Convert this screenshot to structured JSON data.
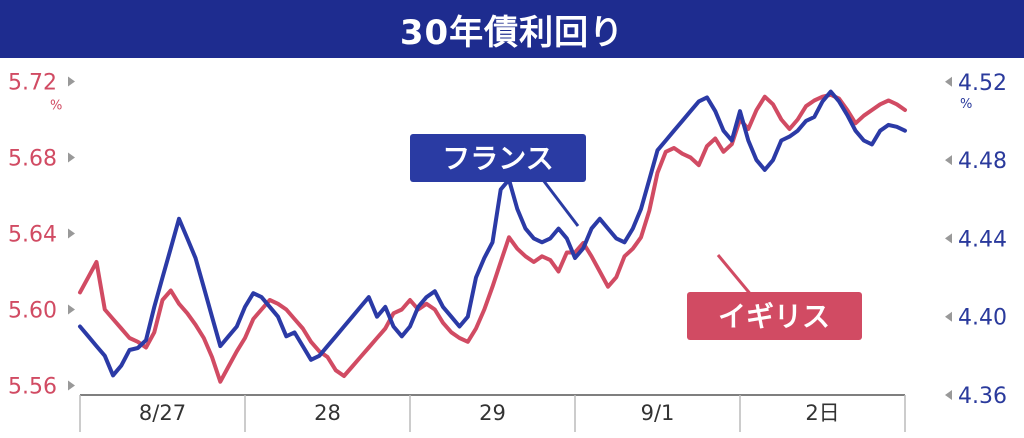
{
  "title": "30年債利回り",
  "chart_data": {
    "type": "line",
    "title": "30年債利回り",
    "x_categories": [
      "8/27",
      "28",
      "29",
      "9/1",
      "2日"
    ],
    "left_axis": {
      "unit": "%",
      "ticks": [
        "5.72",
        "5.68",
        "5.64",
        "5.60",
        "5.56"
      ],
      "ylim": [
        5.555,
        5.725
      ],
      "color": "#d14b63"
    },
    "right_axis": {
      "unit": "%",
      "ticks": [
        "4.52",
        "4.48",
        "4.44",
        "4.40",
        "4.36"
      ],
      "ylim": [
        4.36,
        4.525
      ],
      "color": "#2a3a9c"
    },
    "series": [
      {
        "name": "フランス",
        "axis": "right",
        "color": "#2b3aa6",
        "x": [
          0.0,
          0.05,
          0.1,
          0.15,
          0.2,
          0.25,
          0.3,
          0.35,
          0.4,
          0.45,
          0.5,
          0.55,
          0.6,
          0.65,
          0.7,
          0.75,
          0.8,
          0.85,
          0.9,
          0.95,
          1.0,
          1.05,
          1.1,
          1.15,
          1.2,
          1.25,
          1.3,
          1.35,
          1.4,
          1.45,
          1.5,
          1.55,
          1.6,
          1.65,
          1.7,
          1.75,
          1.8,
          1.85,
          1.9,
          1.95,
          2.0,
          2.05,
          2.1,
          2.15,
          2.2,
          2.25,
          2.3,
          2.35,
          2.4,
          2.45,
          2.5,
          2.55,
          2.6,
          2.65,
          2.7,
          2.75,
          2.8,
          2.85,
          2.9,
          2.95,
          3.0,
          3.05,
          3.1,
          3.15,
          3.2,
          3.25,
          3.3,
          3.35,
          3.4,
          3.45,
          3.5,
          3.55,
          3.6,
          3.65,
          3.7,
          3.75,
          3.8,
          3.85,
          3.9,
          3.95,
          4.0,
          4.05,
          4.1,
          4.15,
          4.2,
          4.25,
          4.3,
          4.35,
          4.4,
          4.45,
          4.5,
          4.55,
          4.6,
          4.65,
          4.7,
          4.75,
          4.8,
          4.85,
          4.9,
          4.95,
          5.0
        ],
        "values": [
          4.395,
          4.39,
          4.385,
          4.38,
          4.37,
          4.375,
          4.383,
          4.384,
          4.388,
          4.405,
          4.42,
          4.435,
          4.45,
          4.44,
          4.43,
          4.415,
          4.4,
          4.385,
          4.39,
          4.395,
          4.405,
          4.412,
          4.41,
          4.405,
          4.4,
          4.39,
          4.392,
          4.385,
          4.378,
          4.38,
          4.385,
          4.39,
          4.395,
          4.4,
          4.405,
          4.41,
          4.4,
          4.405,
          4.395,
          4.39,
          4.395,
          4.405,
          4.41,
          4.413,
          4.405,
          4.4,
          4.395,
          4.4,
          4.42,
          4.43,
          4.438,
          4.465,
          4.47,
          4.455,
          4.445,
          4.44,
          4.438,
          4.44,
          4.445,
          4.44,
          4.43,
          4.435,
          4.445,
          4.45,
          4.445,
          4.44,
          4.438,
          4.445,
          4.455,
          4.47,
          4.485,
          4.49,
          4.495,
          4.5,
          4.505,
          4.51,
          4.512,
          4.505,
          4.495,
          4.49,
          4.505,
          4.49,
          4.48,
          4.475,
          4.48,
          4.49,
          4.492,
          4.495,
          4.5,
          4.502,
          4.51,
          4.515,
          4.51,
          4.503,
          4.495,
          4.49,
          4.488,
          4.495,
          4.498,
          4.497,
          4.495
        ]
      },
      {
        "name": "イギリス",
        "axis": "left",
        "color": "#d14b63",
        "x": [
          0.0,
          0.05,
          0.1,
          0.15,
          0.2,
          0.25,
          0.3,
          0.35,
          0.4,
          0.45,
          0.5,
          0.55,
          0.6,
          0.65,
          0.7,
          0.75,
          0.8,
          0.85,
          0.9,
          0.95,
          1.0,
          1.05,
          1.1,
          1.15,
          1.2,
          1.25,
          1.3,
          1.35,
          1.4,
          1.45,
          1.5,
          1.55,
          1.6,
          1.65,
          1.7,
          1.75,
          1.8,
          1.85,
          1.9,
          1.95,
          2.0,
          2.05,
          2.1,
          2.15,
          2.2,
          2.25,
          2.3,
          2.35,
          2.4,
          2.45,
          2.5,
          2.55,
          2.6,
          2.65,
          2.7,
          2.75,
          2.8,
          2.85,
          2.9,
          2.95,
          3.0,
          3.05,
          3.1,
          3.15,
          3.2,
          3.25,
          3.3,
          3.35,
          3.4,
          3.45,
          3.5,
          3.55,
          3.6,
          3.65,
          3.7,
          3.75,
          3.8,
          3.85,
          3.9,
          3.95,
          4.0,
          4.05,
          4.1,
          4.15,
          4.2,
          4.25,
          4.3,
          4.35,
          4.4,
          4.45,
          4.5,
          4.55,
          4.6,
          4.65,
          4.7,
          4.75,
          4.8,
          4.85,
          4.9,
          4.95,
          5.0
        ],
        "values": [
          5.609,
          5.617,
          5.625,
          5.6,
          5.595,
          5.59,
          5.585,
          5.583,
          5.58,
          5.588,
          5.605,
          5.61,
          5.603,
          5.598,
          5.592,
          5.585,
          5.575,
          5.562,
          5.57,
          5.578,
          5.585,
          5.595,
          5.6,
          5.605,
          5.603,
          5.6,
          5.595,
          5.59,
          5.583,
          5.578,
          5.575,
          5.568,
          5.565,
          5.57,
          5.575,
          5.58,
          5.585,
          5.59,
          5.598,
          5.6,
          5.605,
          5.6,
          5.603,
          5.6,
          5.593,
          5.588,
          5.585,
          5.583,
          5.59,
          5.6,
          5.612,
          5.625,
          5.638,
          5.632,
          5.628,
          5.625,
          5.628,
          5.626,
          5.62,
          5.63,
          5.63,
          5.635,
          5.628,
          5.62,
          5.612,
          5.617,
          5.628,
          5.632,
          5.638,
          5.652,
          5.672,
          5.683,
          5.685,
          5.682,
          5.68,
          5.676,
          5.686,
          5.69,
          5.683,
          5.687,
          5.7,
          5.695,
          5.705,
          5.712,
          5.708,
          5.7,
          5.695,
          5.7,
          5.707,
          5.71,
          5.712,
          5.713,
          5.711,
          5.705,
          5.698,
          5.702,
          5.705,
          5.708,
          5.71,
          5.708,
          5.705
        ]
      }
    ],
    "annotations": [
      {
        "text": "フランス",
        "color": "#2a3ba3"
      },
      {
        "text": "イギリス",
        "color": "#d14b63"
      }
    ],
    "grid": false,
    "legend": "callouts"
  }
}
